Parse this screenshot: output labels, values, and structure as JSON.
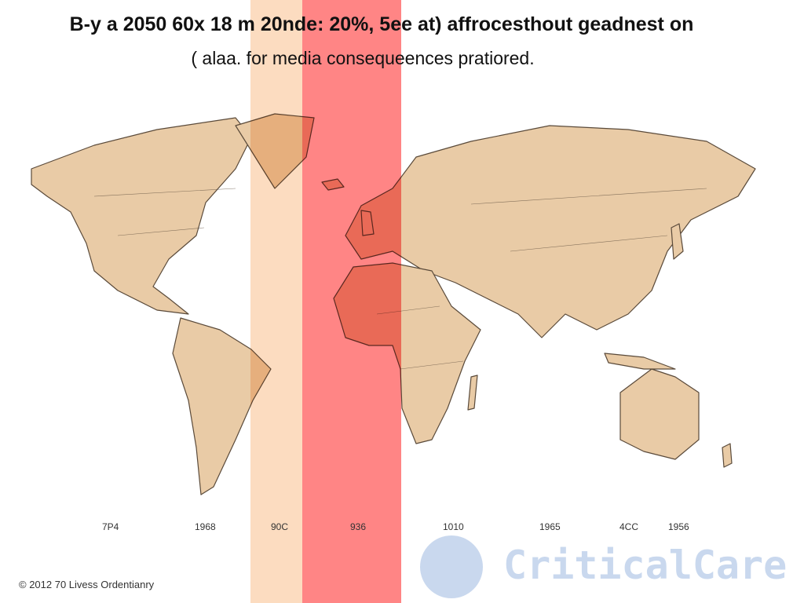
{
  "title_line1": "B-y a 2050 60x 18 m 20nde: 20%, 5ee at) affrocesthout geadnest on",
  "title_line2": "( alaa. for media consequeences pratiored.",
  "year_labels": [
    "7P4",
    "1968",
    "90C",
    "936",
    "1010",
    "1965",
    "4CC",
    "1956"
  ],
  "copyright": "© 2012 70 Livess Ordentianry",
  "logo_text": "CriticalCare",
  "colors": {
    "land": "#e9cba6",
    "outline": "#5a4a3a",
    "band_light": "#fcdcc0",
    "band_red": "#ff8585",
    "logo": "#c9d8ee"
  }
}
